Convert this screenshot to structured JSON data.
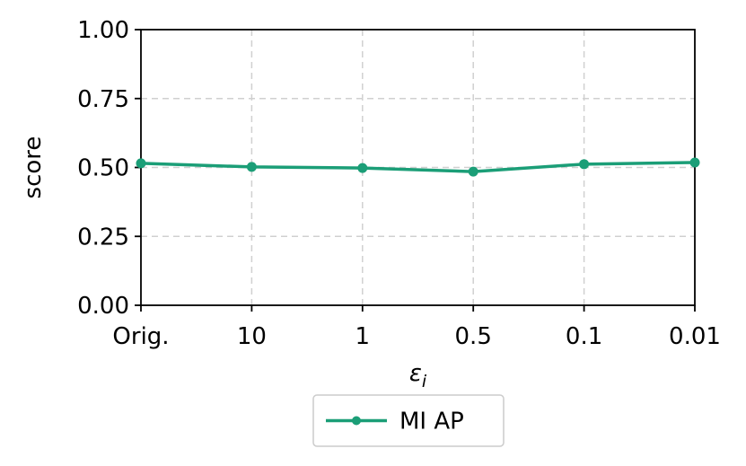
{
  "chart_data": {
    "type": "line",
    "categories": [
      "Orig.",
      "10",
      "1",
      "0.5",
      "0.1",
      "0.01"
    ],
    "series": [
      {
        "name": "MI AP",
        "values": [
          0.515,
          0.502,
          0.498,
          0.485,
          0.512,
          0.518
        ],
        "color": "#1b9e77",
        "marker": "circle"
      }
    ],
    "ylabel": "score",
    "xlabel_base": "ε",
    "xlabel_sub": "i",
    "ylim": [
      0,
      1
    ],
    "yticks": [
      0.0,
      0.25,
      0.5,
      0.75,
      1.0
    ],
    "ytick_labels": [
      "0.00",
      "0.25",
      "0.50",
      "0.75",
      "1.00"
    ],
    "grid": true,
    "legend_position": "bottom-center"
  }
}
